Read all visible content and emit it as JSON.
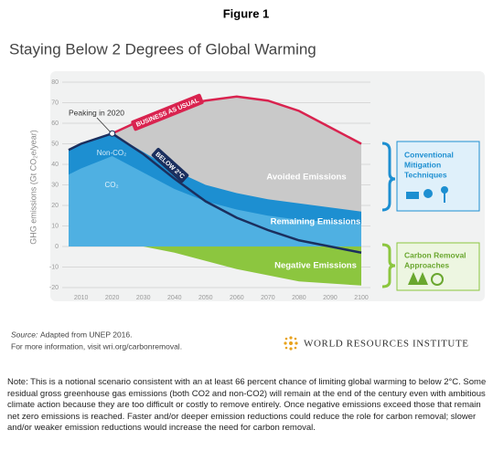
{
  "figure_label": "Figure 1",
  "chart_data": {
    "type": "area",
    "title": "Staying Below 2 Degrees of Global Warming",
    "y_label": "GHG emissions (Gt CO₂e/year)",
    "x": [
      2006,
      2010,
      2020,
      2030,
      2040,
      2050,
      2060,
      2070,
      2080,
      2090,
      2100
    ],
    "xlim": [
      2006,
      2100
    ],
    "xticks": [
      2010,
      2020,
      2030,
      2040,
      2050,
      2060,
      2070,
      2080,
      2090,
      2100
    ],
    "ylim": [
      -20,
      80
    ],
    "yticks": [
      -20,
      -10,
      0,
      10,
      20,
      30,
      40,
      50,
      60,
      70,
      80
    ],
    "grid": true,
    "series": [
      {
        "name": "BUSINESS AS USUAL",
        "color": "#d9234f",
        "fill": "#c9c9c9",
        "values": [
          null,
          null,
          55,
          62,
          68,
          71,
          73,
          71,
          66,
          58,
          50
        ]
      },
      {
        "name": "Non-CO₂",
        "fill": "#1d8fd1",
        "values": [
          47,
          50,
          55,
          46,
          37,
          30,
          26,
          23,
          21,
          19,
          17
        ]
      },
      {
        "name": "CO₂",
        "fill": "#4fb0e2",
        "values": [
          35,
          38,
          44,
          36,
          28,
          22,
          18,
          15,
          13,
          12,
          11
        ]
      },
      {
        "name": "Negative Emissions",
        "fill": "#8cc63f",
        "values": [
          0,
          0,
          0,
          0,
          -3,
          -7,
          -11,
          -14,
          -17,
          -18,
          -19
        ]
      },
      {
        "name": "BELOW 2°C",
        "color": "#1b2f5e",
        "values": [
          47,
          50,
          55,
          45,
          33,
          22,
          14,
          8,
          3,
          0,
          -3
        ]
      }
    ],
    "annotations": [
      "Peaking in 2020",
      "Avoided Emissions",
      "Remaining Emissions"
    ]
  },
  "side_boxes": [
    {
      "lines": [
        "Conventional",
        "Mitigation",
        "Techniques"
      ],
      "color": "#1d8fd1"
    },
    {
      "lines": [
        "Carbon Removal",
        "Approaches"
      ],
      "color": "#6aa72f"
    }
  ],
  "source_label": "Source:",
  "source": "Adapted from UNEP 2016.",
  "more_info": "For more information, visit wri.org/carbonremoval.",
  "logo_text": "WORLD RESOURCES INSTITUTE",
  "note": "Note: This is a notional scenario consistent with an at least 66 percent chance of limiting global warming to below 2°C. Some residual gross greenhouse gas emissions (both CO2 and non-CO2) will remain at the end of the century even with ambitious climate action because they are too difficult or costly to remove entirely. Once negative emissions exceed those that remain net zero emissions is reached. Faster and/or deeper emission reductions could reduce the role for carbon removal; slower and/or weaker emission reductions would increase the need for carbon removal."
}
